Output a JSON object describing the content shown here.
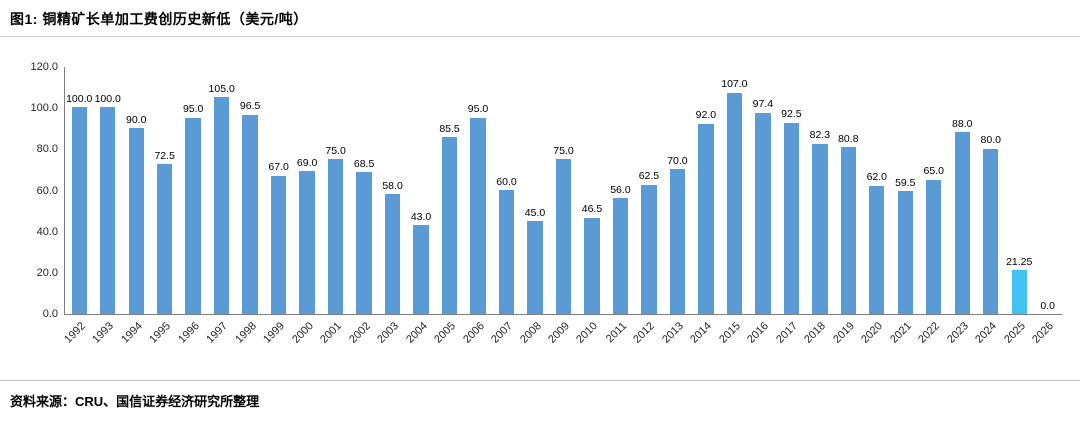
{
  "header": {
    "title": "图1: 铜精矿长单加工费创历史新低（美元/吨）"
  },
  "footer": {
    "source": "资料来源：CRU、国信证券经济研究所整理"
  },
  "chart_data": {
    "type": "bar",
    "title": "铜精矿长单加工费创历史新低（美元/吨）",
    "xlabel": "",
    "ylabel": "",
    "ylim": [
      0,
      120
    ],
    "yticks": [
      "120.0",
      "100.0",
      "80.0",
      "60.0",
      "40.0",
      "20.0",
      "0.0"
    ],
    "grid": false,
    "legend": false,
    "bar_color": "#5b9bd5",
    "highlight_index": 33,
    "highlight_color": "#41c2f0",
    "categories": [
      "1992",
      "1993",
      "1994",
      "1995",
      "1996",
      "1997",
      "1998",
      "1999",
      "2000",
      "2001",
      "2002",
      "2003",
      "2004",
      "2005",
      "2006",
      "2007",
      "2008",
      "2009",
      "2010",
      "2011",
      "2012",
      "2013",
      "2014",
      "2015",
      "2016",
      "2017",
      "2018",
      "2019",
      "2020",
      "2021",
      "2022",
      "2023",
      "2024",
      "2025",
      "2026"
    ],
    "values": [
      100,
      100,
      90,
      72.5,
      95,
      105,
      96.5,
      67,
      69,
      75,
      68.5,
      58,
      43,
      85.5,
      95,
      60,
      45,
      75,
      46.5,
      56,
      62.5,
      70,
      92,
      107,
      97.4,
      92.5,
      82.3,
      80.8,
      62,
      59.5,
      65,
      88,
      80,
      21.25,
      0
    ],
    "labels": [
      "100.0",
      "100.0",
      "90.0",
      "72.5",
      "95.0",
      "105.0",
      "96.5",
      "67.0",
      "69.0",
      "75.0",
      "68.5",
      "58.0",
      "43.0",
      "85.5",
      "95.0",
      "60.0",
      "45.0",
      "75.0",
      "46.5",
      "56.0",
      "62.5",
      "70.0",
      "92.0",
      "107.0",
      "97.4",
      "92.5",
      "82.3",
      "80.8",
      "62.0",
      "59.5",
      "65.0",
      "88.0",
      "80.0",
      "21.25",
      "0.0"
    ]
  }
}
